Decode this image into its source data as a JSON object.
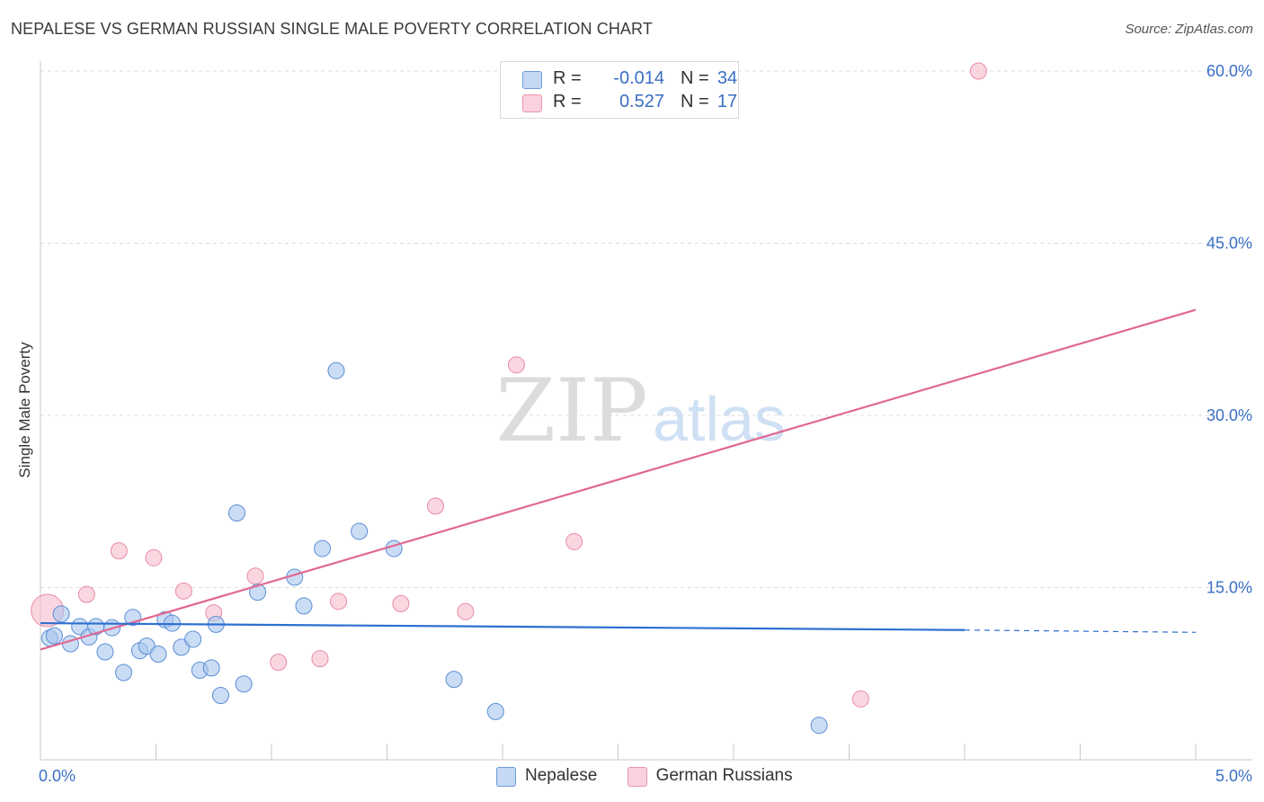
{
  "title": "NEPALESE VS GERMAN RUSSIAN SINGLE MALE POVERTY CORRELATION CHART",
  "source": "Source: ZipAtlas.com",
  "colors": {
    "blue_fill": "#a9c7ef",
    "blue_stroke": "#5b8ed6",
    "blue_line": "#2d6fd1",
    "pink_fill": "#f6bccb",
    "pink_stroke": "#e98aa6",
    "pink_line": "#e06892",
    "axis_text": "#3a6fc4"
  },
  "legend_top": [
    {
      "swatch": "blue",
      "r_label": "R =",
      "r_value": "-0.014",
      "n_label": "N =",
      "n_value": "34"
    },
    {
      "swatch": "pink",
      "r_label": "R =",
      "r_value": "0.527",
      "n_label": "N =",
      "n_value": "17"
    }
  ],
  "chart_data": {
    "type": "scatter",
    "title": "NEPALESE VS GERMAN RUSSIAN SINGLE MALE POVERTY CORRELATION CHART",
    "xlabel": "",
    "ylabel": "Single Male Poverty",
    "xlim": [
      0,
      5
    ],
    "ylim": [
      0,
      60
    ],
    "x_tick_labels": [
      "0.0%",
      "5.0%"
    ],
    "y_ticks": [
      15,
      30,
      45,
      60
    ],
    "y_tick_labels": [
      "15.0%",
      "30.0%",
      "45.0%",
      "60.0%"
    ],
    "watermark": {
      "zip": "ZIP",
      "atlas": "atlas"
    },
    "series": [
      {
        "name": "Nepalese",
        "color": "blue",
        "r": -0.014,
        "n": 34,
        "points": [
          [
            0.04,
            10.6
          ],
          [
            0.06,
            10.8
          ],
          [
            0.09,
            12.7
          ],
          [
            0.13,
            10.1
          ],
          [
            0.17,
            11.6
          ],
          [
            0.21,
            10.7
          ],
          [
            0.24,
            11.6
          ],
          [
            0.28,
            9.4
          ],
          [
            0.31,
            11.5
          ],
          [
            0.36,
            7.6
          ],
          [
            0.4,
            12.4
          ],
          [
            0.43,
            9.5
          ],
          [
            0.46,
            9.9
          ],
          [
            0.51,
            9.2
          ],
          [
            0.54,
            12.2
          ],
          [
            0.57,
            11.9
          ],
          [
            0.61,
            9.8
          ],
          [
            0.66,
            10.5
          ],
          [
            0.69,
            7.8
          ],
          [
            0.74,
            8.0
          ],
          [
            0.76,
            11.8
          ],
          [
            0.78,
            5.6
          ],
          [
            0.85,
            21.5
          ],
          [
            0.88,
            6.6
          ],
          [
            0.94,
            14.6
          ],
          [
            1.1,
            15.9
          ],
          [
            1.14,
            13.4
          ],
          [
            1.22,
            18.4
          ],
          [
            1.28,
            33.9
          ],
          [
            1.38,
            19.9
          ],
          [
            1.53,
            18.4
          ],
          [
            1.79,
            7.0
          ],
          [
            1.97,
            4.2
          ],
          [
            3.37,
            3.0
          ]
        ],
        "trend": {
          "x": [
            0.0,
            4.0
          ],
          "y": [
            11.9,
            11.3
          ],
          "extends_dashed_to": [
            5.0,
            11.1
          ]
        }
      },
      {
        "name": "German Russians",
        "color": "pink",
        "r": 0.527,
        "n": 17,
        "points": [
          [
            0.03,
            13.0
          ],
          [
            0.2,
            14.4
          ],
          [
            0.34,
            18.2
          ],
          [
            0.49,
            17.6
          ],
          [
            0.62,
            14.7
          ],
          [
            0.75,
            12.8
          ],
          [
            0.93,
            16.0
          ],
          [
            1.03,
            8.5
          ],
          [
            1.21,
            8.8
          ],
          [
            1.29,
            13.8
          ],
          [
            1.56,
            13.6
          ],
          [
            1.71,
            22.1
          ],
          [
            1.84,
            12.9
          ],
          [
            2.06,
            34.4
          ],
          [
            2.31,
            19.0
          ],
          [
            3.55,
            5.3
          ],
          [
            4.06,
            60.0
          ]
        ],
        "trend": {
          "x": [
            0.0,
            5.0
          ],
          "y": [
            9.6,
            39.2
          ]
        }
      }
    ]
  }
}
